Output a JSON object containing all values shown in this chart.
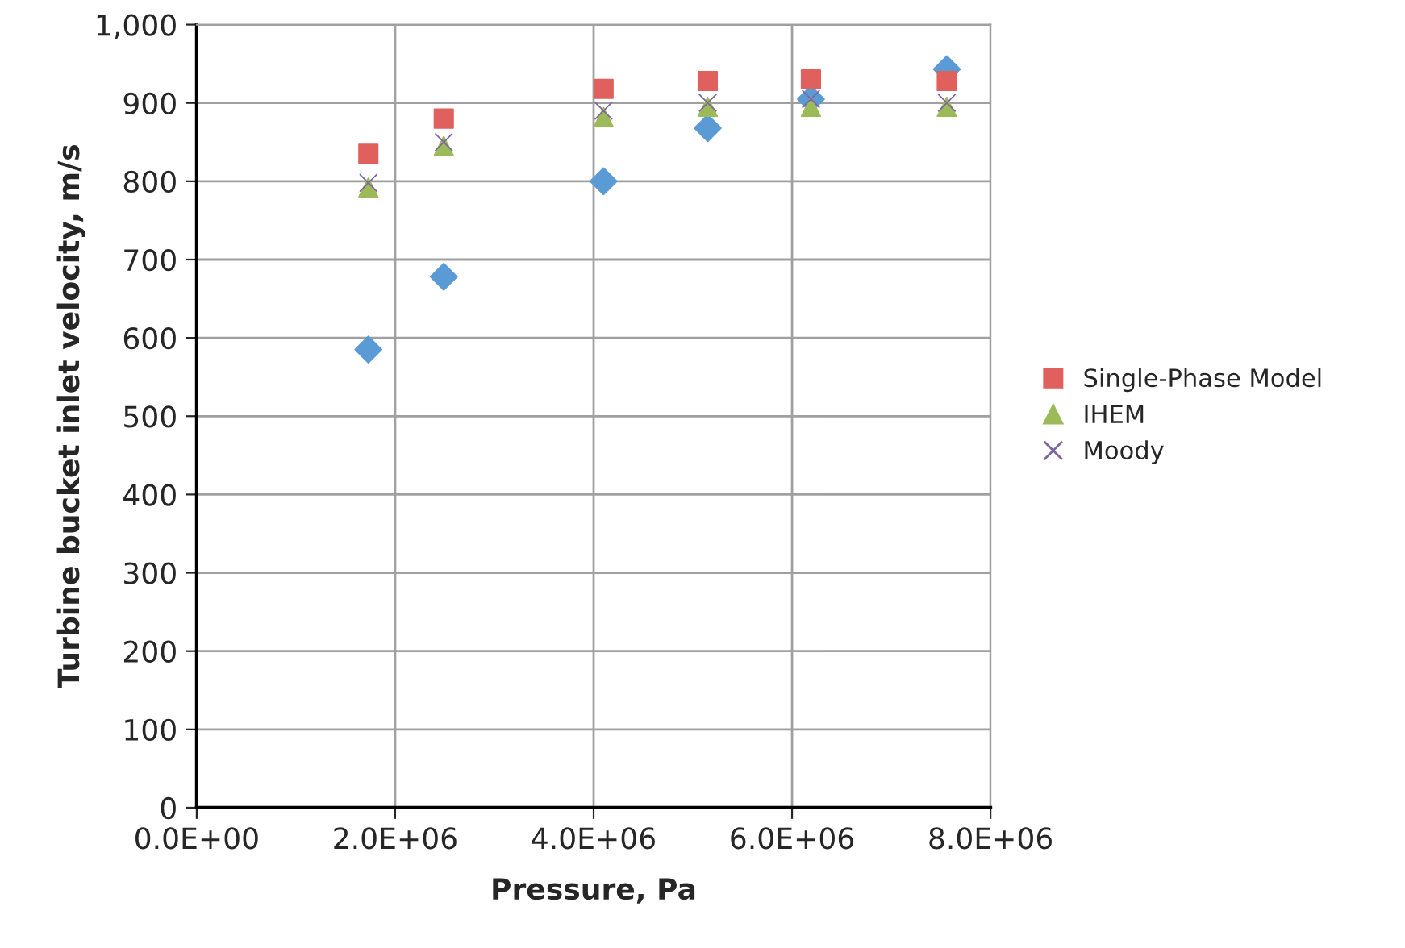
{
  "chart_data": {
    "type": "scatter",
    "xlabel": "Pressure, Pa",
    "ylabel": "Turbine bucket inlet velocity, m/s",
    "x": [
      1730000,
      2490000,
      4100000,
      5150000,
      6190000,
      7560000
    ],
    "series": [
      {
        "color": "#5b9bd5",
        "marker": "diamond",
        "values": [
          585,
          678,
          800,
          868,
          905,
          943
        ]
      },
      {
        "name": "Single-Phase Model",
        "color": "#e0605e",
        "marker": "square",
        "values": [
          835,
          880,
          918,
          928,
          930,
          928
        ]
      },
      {
        "name": "IHEM",
        "color": "#9bbb59",
        "marker": "triangle",
        "values": [
          792,
          845,
          882,
          895,
          895,
          895
        ]
      },
      {
        "name": "Moody",
        "color": "#8064a2",
        "marker": "cross",
        "values": [
          798,
          850,
          890,
          900,
          905,
          900
        ]
      }
    ],
    "xlim": [
      0,
      8000000
    ],
    "ylim": [
      0,
      1000
    ],
    "xticks": [
      {
        "value": 0,
        "label": "0.0E+00"
      },
      {
        "value": 2000000,
        "label": "2.0E+06"
      },
      {
        "value": 4000000,
        "label": "4.0E+06"
      },
      {
        "value": 6000000,
        "label": "6.0E+06"
      },
      {
        "value": 8000000,
        "label": "8.0E+06"
      }
    ],
    "yticks": [
      0,
      100,
      200,
      300,
      400,
      500,
      600,
      700,
      800,
      900,
      {
        "value": 1000,
        "label": "1,000"
      }
    ],
    "grid": true,
    "legend": "right"
  }
}
